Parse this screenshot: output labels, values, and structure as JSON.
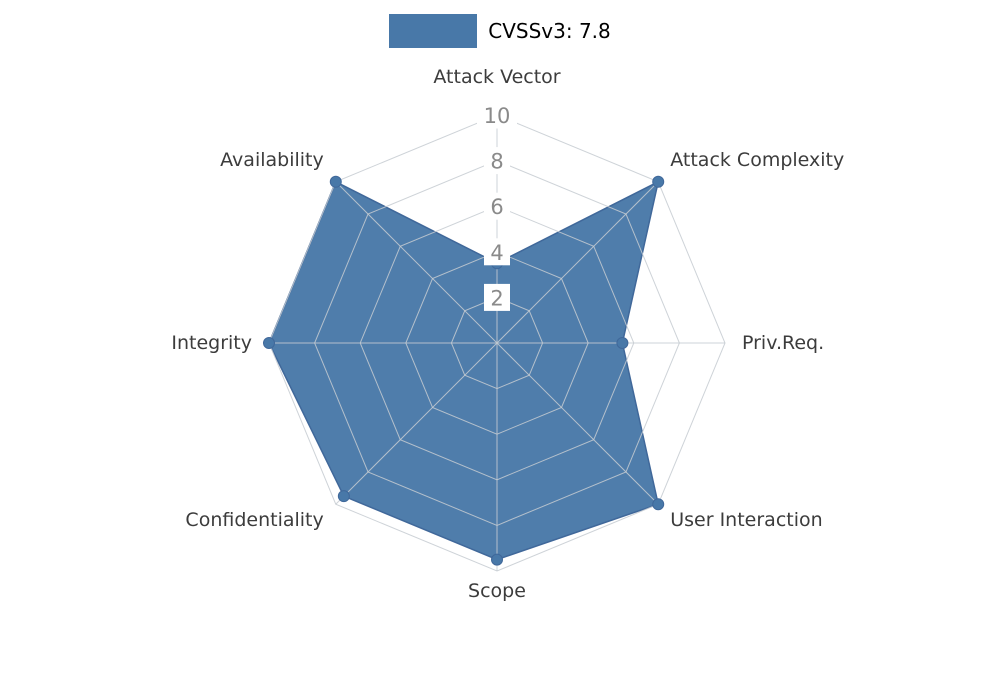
{
  "legend": {
    "label": "CVSSv3: 7.8"
  },
  "chart_data": {
    "type": "radar",
    "title": "CVSSv3: 7.8",
    "categories": [
      "Attack Vector",
      "Attack Complexity",
      "Priv.Req.",
      "User Interaction",
      "Scope",
      "Confidentiality",
      "Integrity",
      "Availability"
    ],
    "series": [
      {
        "name": "CVSSv3: 7.8",
        "values": [
          3.5,
          10,
          5.5,
          10,
          9.5,
          9.5,
          10,
          10
        ]
      }
    ],
    "rmax": 10,
    "radial_ticks": [
      2,
      4,
      6,
      8,
      10
    ],
    "start_axis": "top",
    "direction": "clockwise",
    "grid": true,
    "legend_position": "top-center",
    "colors": {
      "fill": "#4878A8",
      "stroke": "#40689A",
      "grid": "#C6CBD1",
      "axis_label": "#3C3C3C",
      "tick_label": "#8A8A8A",
      "tick_box": "#FFFFFF",
      "title": "#000000"
    }
  }
}
